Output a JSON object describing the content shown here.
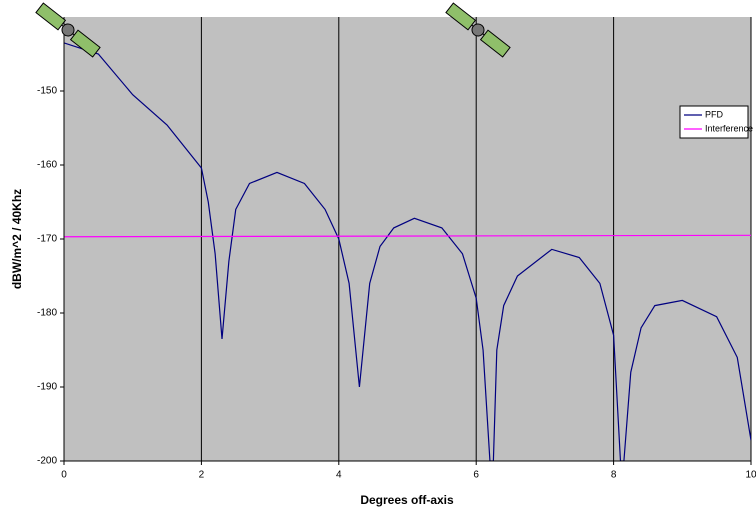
{
  "chart_data": {
    "type": "line",
    "xlabel": "Degrees off-axis",
    "ylabel": "dBW/m^2  / 40Khz",
    "xlim": [
      0,
      10
    ],
    "ylim": [
      -200,
      -140
    ],
    "xticks": [
      0,
      2,
      4,
      6,
      8,
      10
    ],
    "yticks": [
      -200,
      -190,
      -180,
      -170,
      -160,
      -150
    ],
    "grid": "x",
    "legend": "right",
    "series": [
      {
        "name": "PFD",
        "color": "#000080",
        "x": [
          0,
          0.5,
          1.0,
          1.5,
          2.0,
          2.1,
          2.2,
          2.3,
          2.4,
          2.5,
          2.7,
          3.1,
          3.5,
          3.8,
          4.0,
          4.15,
          4.3,
          4.45,
          4.6,
          4.8,
          5.1,
          5.5,
          5.8,
          6.0,
          6.1,
          6.2,
          6.25,
          6.3,
          6.4,
          6.6,
          7.1,
          7.5,
          7.8,
          8.0,
          8.1,
          8.15,
          8.25,
          8.4,
          8.6,
          9.0,
          9.5,
          9.8,
          10.0
        ],
        "values": [
          -143.5,
          -145,
          -150.5,
          -154.6,
          -160.4,
          -165,
          -172,
          -183.5,
          -173,
          -166,
          -162.5,
          -161,
          -162.5,
          -166,
          -170,
          -176,
          -190,
          -176,
          -171,
          -168.5,
          -167.2,
          -168.5,
          -172,
          -178,
          -185,
          -200,
          -200,
          -185,
          -179,
          -175,
          -171.4,
          -172.5,
          -176,
          -183,
          -200,
          -200,
          -188,
          -182,
          -179,
          -178.3,
          -180.5,
          -186,
          -197.2
        ]
      },
      {
        "name": "Interference",
        "color": "#ff00ff",
        "x": [
          0,
          10
        ],
        "values": [
          -169.7,
          -169.5
        ]
      }
    ]
  }
}
